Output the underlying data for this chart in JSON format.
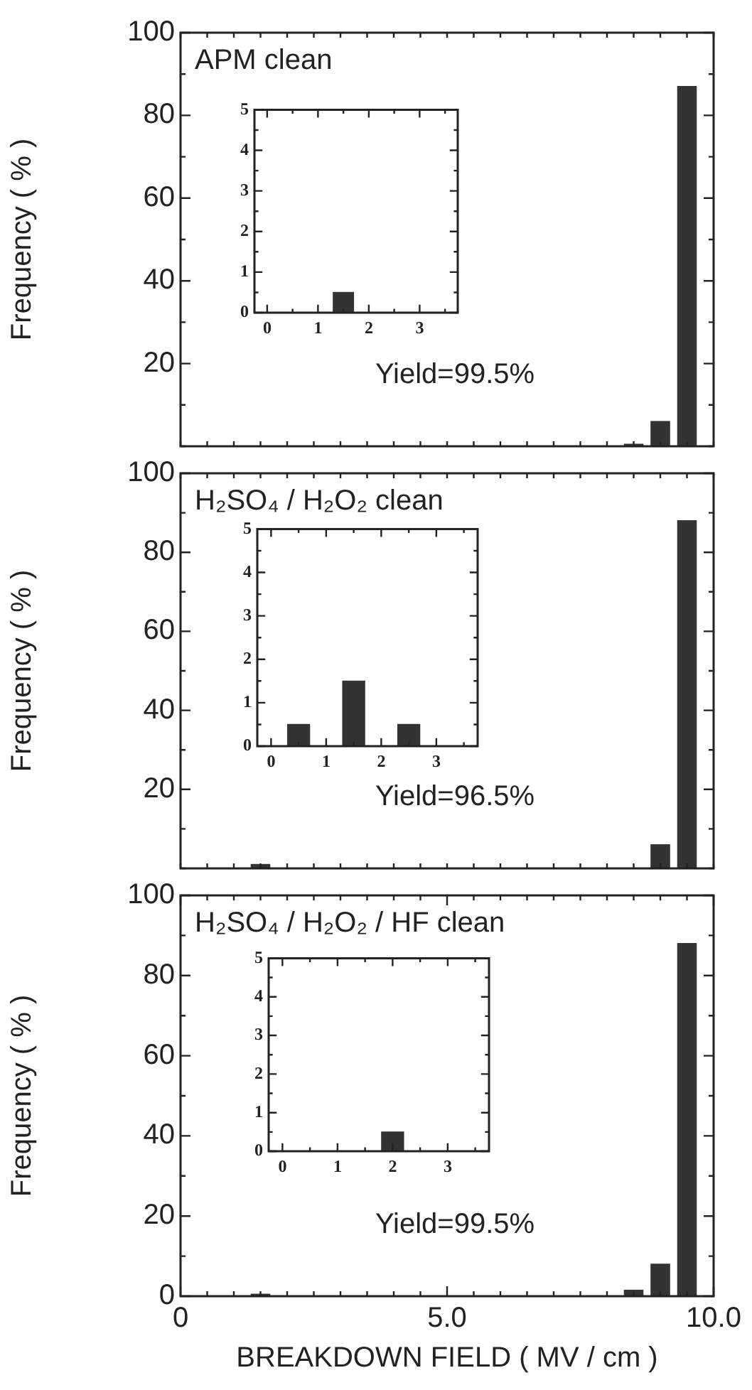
{
  "chart_data": [
    {
      "type": "histogram",
      "title": "APM clean",
      "ylabel": "Frequency ( % )",
      "annotations": [
        "Yield=99.5%"
      ],
      "bins": [
        0.25,
        0.75,
        1.25,
        1.75,
        2.25,
        2.75,
        3.25,
        3.75,
        4.25,
        4.75,
        5.25,
        5.75,
        6.25,
        6.75,
        7.25,
        7.75,
        8.25,
        8.75,
        9.25,
        9.75
      ],
      "values": [
        0,
        0,
        0,
        0,
        0,
        0,
        0,
        0,
        0,
        0,
        0,
        0,
        0,
        0,
        0,
        0,
        0.5,
        6,
        87
      ],
      "color": "#333333",
      "xlim": [
        0,
        10
      ],
      "xticks": [
        {
          "value": 0,
          "label": null
        },
        {
          "value": 0.5,
          "label": null
        },
        {
          "value": 1,
          "label": null
        },
        {
          "value": 1.5,
          "label": null
        },
        {
          "value": 2,
          "label": null
        },
        {
          "value": 2.5,
          "label": null
        },
        {
          "value": 3,
          "label": null
        },
        {
          "value": 3.5,
          "label": null
        },
        {
          "value": 4,
          "label": null
        },
        {
          "value": 4.5,
          "label": null
        },
        {
          "value": 5,
          "label": null
        },
        {
          "value": 5.5,
          "label": null
        },
        {
          "value": 6,
          "label": null
        },
        {
          "value": 6.5,
          "label": null
        },
        {
          "value": 7,
          "label": null
        },
        {
          "value": 7.5,
          "label": null
        },
        {
          "value": 8,
          "label": null
        },
        {
          "value": 8.5,
          "label": null
        },
        {
          "value": 9,
          "label": null
        },
        {
          "value": 9.5,
          "label": null
        },
        {
          "value": 10,
          "label": null
        }
      ],
      "ylim": [
        0,
        100
      ],
      "yticks": [
        {
          "value": 0,
          "label": null
        },
        {
          "value": 10,
          "label": null
        },
        20,
        {
          "value": 30,
          "label": null
        },
        40,
        {
          "value": 50,
          "label": null
        },
        60,
        {
          "value": 70,
          "label": null
        },
        80,
        {
          "value": 90,
          "label": null
        },
        100
      ],
      "tick_labels": "y",
      "grid": false,
      "legend": false
    },
    {
      "type": "histogram",
      "bins": [
        1,
        2
      ],
      "values": [
        0.5
      ],
      "color": "#333333",
      "xlim": [
        -0.25,
        3.75
      ],
      "xticks": [
        0,
        {
          "value": 0.5,
          "label": null
        },
        1,
        {
          "value": 1.5,
          "label": null
        },
        2,
        {
          "value": 2.5,
          "label": null
        },
        3,
        {
          "value": 3.5,
          "label": null
        }
      ],
      "ylim": [
        0,
        5
      ],
      "yticks": [
        0,
        {
          "value": 0.5,
          "label": null
        },
        1,
        {
          "value": 1.5,
          "label": null
        },
        2,
        {
          "value": 2.5,
          "label": null
        },
        3,
        {
          "value": 3.5,
          "label": null
        },
        4,
        {
          "value": 4.5,
          "label": null
        },
        5
      ],
      "grid": false,
      "legend": false
    },
    {
      "type": "histogram",
      "title": "H₂SO₄ / H₂O₂ clean",
      "ylabel": "Frequency ( % )",
      "annotations": [
        "Yield=96.5%"
      ],
      "bins": [
        0.25,
        0.75,
        1.25,
        1.75,
        2.25,
        2.75,
        3.25,
        3.75,
        4.25,
        4.75,
        5.25,
        5.75,
        6.25,
        6.75,
        7.25,
        7.75,
        8.25,
        8.75,
        9.25,
        9.75
      ],
      "values": [
        0,
        0,
        1,
        0,
        0,
        0,
        0,
        0,
        0,
        0,
        0,
        0,
        0,
        0,
        0,
        0,
        0,
        6,
        88
      ],
      "color": "#333333",
      "xlim": [
        0,
        10
      ],
      "xticks": [
        {
          "value": 0,
          "label": null
        },
        {
          "value": 0.5,
          "label": null
        },
        {
          "value": 1,
          "label": null
        },
        {
          "value": 1.5,
          "label": null
        },
        {
          "value": 2,
          "label": null
        },
        {
          "value": 2.5,
          "label": null
        },
        {
          "value": 3,
          "label": null
        },
        {
          "value": 3.5,
          "label": null
        },
        {
          "value": 4,
          "label": null
        },
        {
          "value": 4.5,
          "label": null
        },
        {
          "value": 5,
          "label": null
        },
        {
          "value": 5.5,
          "label": null
        },
        {
          "value": 6,
          "label": null
        },
        {
          "value": 6.5,
          "label": null
        },
        {
          "value": 7,
          "label": null
        },
        {
          "value": 7.5,
          "label": null
        },
        {
          "value": 8,
          "label": null
        },
        {
          "value": 8.5,
          "label": null
        },
        {
          "value": 9,
          "label": null
        },
        {
          "value": 9.5,
          "label": null
        },
        {
          "value": 10,
          "label": null
        }
      ],
      "ylim": [
        0,
        100
      ],
      "yticks": [
        {
          "value": 0,
          "label": null
        },
        {
          "value": 10,
          "label": null
        },
        20,
        {
          "value": 30,
          "label": null
        },
        40,
        {
          "value": 50,
          "label": null
        },
        60,
        {
          "value": 70,
          "label": null
        },
        80,
        {
          "value": 90,
          "label": null
        },
        100
      ],
      "tick_labels": "y",
      "grid": false,
      "legend": false
    },
    {
      "type": "histogram",
      "bins": [
        0,
        1,
        2,
        3
      ],
      "values": [
        0.5,
        1.5,
        0.5
      ],
      "color": "#333333",
      "xlim": [
        -0.25,
        3.75
      ],
      "xticks": [
        0,
        {
          "value": 0.5,
          "label": null
        },
        1,
        {
          "value": 1.5,
          "label": null
        },
        2,
        {
          "value": 2.5,
          "label": null
        },
        3,
        {
          "value": 3.5,
          "label": null
        }
      ],
      "ylim": [
        0,
        5
      ],
      "yticks": [
        0,
        {
          "value": 0.5,
          "label": null
        },
        1,
        {
          "value": 1.5,
          "label": null
        },
        2,
        {
          "value": 2.5,
          "label": null
        },
        3,
        {
          "value": 3.5,
          "label": null
        },
        4,
        {
          "value": 4.5,
          "label": null
        },
        5
      ],
      "grid": false,
      "legend": false
    },
    {
      "type": "histogram",
      "title": "H₂SO₄ / H₂O₂ / HF clean",
      "xlabel": "BREAKDOWN FIELD ( MV / cm )",
      "ylabel": "Frequency ( % )",
      "annotations": [
        "Yield=99.5%"
      ],
      "bins": [
        0.25,
        0.75,
        1.25,
        1.75,
        2.25,
        2.75,
        3.25,
        3.75,
        4.25,
        4.75,
        5.25,
        5.75,
        6.25,
        6.75,
        7.25,
        7.75,
        8.25,
        8.75,
        9.25,
        9.75
      ],
      "values": [
        0,
        0,
        0.5,
        0,
        0,
        0,
        0,
        0,
        0,
        0,
        0,
        0,
        0,
        0,
        0,
        0,
        1.5,
        8,
        88
      ],
      "color": "#333333",
      "xlim": [
        0,
        10
      ],
      "xticks": [
        {
          "value": 0,
          "label": "0"
        },
        {
          "value": 0.5,
          "label": null
        },
        {
          "value": 1,
          "label": null
        },
        {
          "value": 1.5,
          "label": null
        },
        {
          "value": 2,
          "label": null
        },
        {
          "value": 2.5,
          "label": null
        },
        {
          "value": 3,
          "label": null
        },
        {
          "value": 3.5,
          "label": null
        },
        {
          "value": 4,
          "label": null
        },
        {
          "value": 4.5,
          "label": null
        },
        {
          "value": 5,
          "label": "5.0"
        },
        {
          "value": 5.5,
          "label": null
        },
        {
          "value": 6,
          "label": null
        },
        {
          "value": 6.5,
          "label": null
        },
        {
          "value": 7,
          "label": null
        },
        {
          "value": 7.5,
          "label": null
        },
        {
          "value": 8,
          "label": null
        },
        {
          "value": 8.5,
          "label": null
        },
        {
          "value": 9,
          "label": null
        },
        {
          "value": 9.5,
          "label": null
        },
        {
          "value": 10,
          "label": "10.0"
        }
      ],
      "ylim": [
        0,
        100
      ],
      "yticks": [
        0,
        {
          "value": 10,
          "label": null
        },
        20,
        {
          "value": 30,
          "label": null
        },
        40,
        {
          "value": 50,
          "label": null
        },
        60,
        {
          "value": 70,
          "label": null
        },
        80,
        {
          "value": 90,
          "label": null
        },
        100
      ],
      "grid": false,
      "legend": false
    },
    {
      "type": "histogram",
      "bins": [
        1.5,
        2.5
      ],
      "values": [
        0.5
      ],
      "color": "#333333",
      "xlim": [
        -0.25,
        3.75
      ],
      "xticks": [
        0,
        {
          "value": 0.5,
          "label": null
        },
        1,
        {
          "value": 1.5,
          "label": null
        },
        2,
        {
          "value": 2.5,
          "label": null
        },
        3,
        {
          "value": 3.5,
          "label": null
        }
      ],
      "ylim": [
        0,
        5
      ],
      "yticks": [
        0,
        {
          "value": 0.5,
          "label": null
        },
        1,
        {
          "value": 1.5,
          "label": null
        },
        2,
        {
          "value": 2.5,
          "label": null
        },
        3,
        {
          "value": 3.5,
          "label": null
        },
        4,
        {
          "value": 4.5,
          "label": null
        },
        5
      ],
      "grid": false,
      "legend": false
    }
  ]
}
